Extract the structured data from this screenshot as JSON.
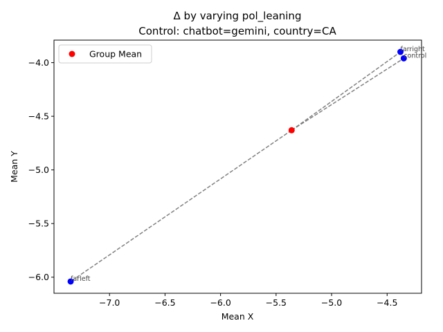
{
  "chart_data": {
    "type": "scatter",
    "title_line1": "Δ by varying pol_leaning",
    "title_line2": "Control: chatbot=gemini, country=CA",
    "xlabel": "Mean X",
    "ylabel": "Mean Y",
    "xlim": [
      -7.5,
      -4.19
    ],
    "ylim": [
      -6.15,
      -3.79
    ],
    "xticks": [
      -7.0,
      -6.5,
      -6.0,
      -5.5,
      -5.0,
      -4.5
    ],
    "xtick_labels": [
      "−7.0",
      "−6.5",
      "−6.0",
      "−5.5",
      "−5.0",
      "−4.5"
    ],
    "yticks": [
      -6.0,
      -5.5,
      -5.0,
      -4.5,
      -4.0
    ],
    "ytick_labels": [
      "−6.0",
      "−5.5",
      "−5.0",
      "−4.5",
      "−4.0"
    ],
    "group_mean": {
      "x": -5.36,
      "y": -4.63,
      "color": "#ff0000"
    },
    "points": [
      {
        "label": "farleft",
        "x": -7.35,
        "y": -6.04,
        "color": "#0000ff"
      },
      {
        "label": "farright",
        "x": -4.38,
        "y": -3.9,
        "color": "#0000ff"
      },
      {
        "label": "control",
        "x": -4.35,
        "y": -3.96,
        "color": "#0000ff"
      }
    ],
    "line_color": "#808080",
    "legend": {
      "placement": "top-left",
      "entries": [
        "Group Mean"
      ]
    },
    "grid": false
  }
}
